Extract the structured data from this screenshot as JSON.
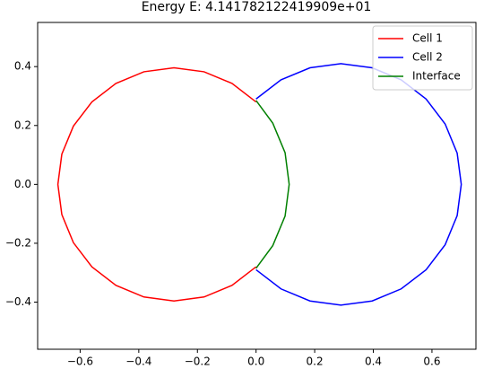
{
  "chart_data": {
    "type": "line",
    "title": "Energy E: 4.141782122419909e+01",
    "xlim": [
      -0.745,
      0.75
    ],
    "ylim": [
      -0.56,
      0.55
    ],
    "xticks": [
      {
        "value": -0.6,
        "label": "−0.6"
      },
      {
        "value": -0.4,
        "label": "−0.4"
      },
      {
        "value": -0.2,
        "label": "−0.2"
      },
      {
        "value": 0,
        "label": "0.0"
      },
      0.2,
      0.4,
      0.6
    ],
    "yticks": [
      {
        "value": -0.4,
        "label": "−0.4"
      },
      {
        "value": -0.2,
        "label": "−0.2"
      },
      {
        "value": 0,
        "label": "0.0"
      },
      0.2,
      0.4
    ],
    "legend": "upper right",
    "series": [
      {
        "name": "Cell 1",
        "color": "#ff0000",
        "x": [
          0.0,
          -0.082,
          -0.1775,
          -0.28,
          -0.3825,
          -0.478,
          -0.56,
          -0.623,
          -0.6625,
          -0.676,
          -0.6625,
          -0.623,
          -0.56,
          -0.478,
          -0.3825,
          -0.28,
          -0.1775,
          -0.082,
          0.0
        ],
        "values": [
          0.28,
          0.343,
          0.3825,
          0.396,
          0.3825,
          0.343,
          0.28,
          0.198,
          0.1025,
          0,
          -0.1025,
          -0.198,
          -0.28,
          -0.343,
          -0.3825,
          -0.396,
          -0.3825,
          -0.343,
          -0.28
        ]
      },
      {
        "name": "Cell 2",
        "color": "#0000ff",
        "x": [
          0.0,
          0.085,
          0.184,
          0.29,
          0.396,
          0.495,
          0.58,
          0.645,
          0.686,
          0.7,
          0.686,
          0.645,
          0.58,
          0.495,
          0.396,
          0.29,
          0.184,
          0.085,
          0.0
        ],
        "values": [
          0.29,
          0.355,
          0.396,
          0.41,
          0.396,
          0.355,
          0.29,
          0.205,
          0.106,
          0,
          -0.106,
          -0.205,
          -0.29,
          -0.355,
          -0.396,
          -0.41,
          -0.396,
          -0.355,
          -0.29
        ]
      },
      {
        "name": "Interface",
        "color": "#008000",
        "x": [
          0.0,
          0.057,
          0.099,
          0.113,
          0.099,
          0.057,
          0.0
        ],
        "values": [
          0.285,
          0.208,
          0.1077,
          0,
          -0.1077,
          -0.208,
          -0.285
        ]
      }
    ]
  }
}
